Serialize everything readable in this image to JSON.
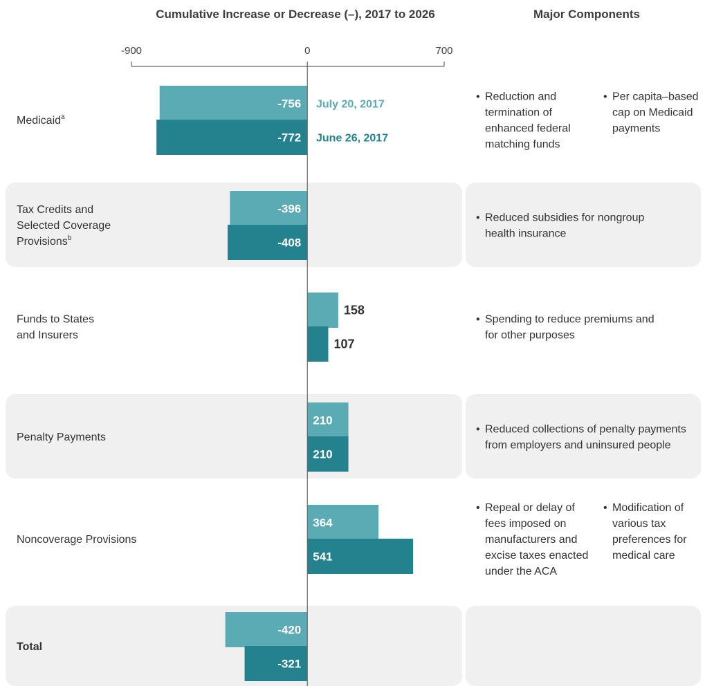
{
  "colors": {
    "july": "#5aabb3",
    "june": "#23828e",
    "band": "#f0f0f0",
    "axis": "#666666"
  },
  "chart_data": {
    "type": "bar",
    "orientation": "horizontal",
    "title": "Cumulative Increase or Decrease (–), 2017 to 2026",
    "components_header": "Major Components",
    "xlim": [
      -900,
      700
    ],
    "ticks": [
      -900,
      0,
      700
    ],
    "categories": [
      {
        "label": "Medicaid",
        "sup": "a"
      },
      {
        "label": "Tax Credits and\nSelected Coverage\nProvisions",
        "sup": "b"
      },
      {
        "label": "Funds to States\nand Insurers",
        "sup": ""
      },
      {
        "label": "Penalty Payments",
        "sup": ""
      },
      {
        "label": "Noncoverage Provisions",
        "sup": ""
      },
      {
        "label": "Total",
        "sup": "",
        "bold": true
      }
    ],
    "series": [
      {
        "name": "July 20, 2017",
        "values": [
          -756,
          -396,
          158,
          210,
          364,
          -420
        ]
      },
      {
        "name": "June 26, 2017",
        "values": [
          -772,
          -408,
          107,
          210,
          541,
          -321
        ]
      }
    ],
    "value_labels": [
      [
        "-756",
        "-396",
        "158",
        "210",
        "364",
        "-420"
      ],
      [
        "-772",
        "-408",
        "107",
        "210",
        "541",
        "-321"
      ]
    ],
    "components": [
      [
        [
          "Reduction and",
          "termination of",
          "enhanced federal",
          "matching funds"
        ],
        [
          "Per capita–based",
          "cap on Medicaid",
          "payments"
        ]
      ],
      [
        [
          "Reduced subsidies for nongroup",
          "health insurance"
        ]
      ],
      [
        [
          "Spending to reduce premiums and",
          "for other purposes"
        ]
      ],
      [
        [
          "Reduced collections of penalty payments",
          "from employers and uninsured people"
        ]
      ],
      [
        [
          "Repeal or delay of",
          "fees imposed on",
          "manufacturers and",
          "excise taxes enacted",
          "under the ACA"
        ],
        [
          "Modification of",
          "various tax",
          "preferences for",
          "medical care"
        ]
      ],
      []
    ]
  }
}
